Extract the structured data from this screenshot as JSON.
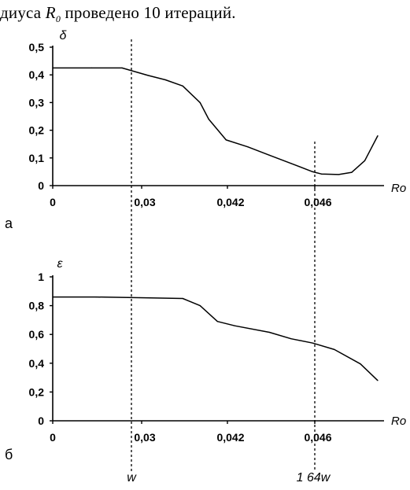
{
  "text_line": {
    "prefix": "диуса ",
    "var_letter": "R",
    "var_subscript": "0",
    "suffix": " проведено 10 итераций."
  },
  "chart_data": [
    {
      "type": "line",
      "panel_label": "а",
      "ylabel": "δ",
      "xlabel": "Ro",
      "ylim": [
        0,
        0.5
      ],
      "yticks": [
        "0,5",
        "0,4",
        "0,3",
        "0,2",
        "0,1",
        "0"
      ],
      "xtick_labels": [
        "0",
        "0,03",
        "0,042",
        "0,046"
      ],
      "grid": false,
      "series": [
        {
          "x": [
            0,
            0.009,
            0.016,
            0.022,
            0.026,
            0.03,
            0.034,
            0.036,
            0.04,
            0.045,
            0.05,
            0.055,
            0.06,
            0.062,
            0.066,
            0.069,
            0.072,
            0.075
          ],
          "values": [
            0.425,
            0.425,
            0.425,
            0.398,
            0.382,
            0.36,
            0.3,
            0.24,
            0.165,
            0.14,
            0.11,
            0.08,
            0.05,
            0.042,
            0.04,
            0.048,
            0.09,
            0.18
          ]
        }
      ]
    },
    {
      "type": "line",
      "panel_label": "б",
      "ylabel": "ε",
      "xlabel": "Ro",
      "ylim": [
        0,
        1
      ],
      "yticks": [
        "1",
        "0,8",
        "0,6",
        "0,4",
        "0,2",
        "0"
      ],
      "xtick_labels": [
        "0",
        "0,03",
        "0,042",
        "0,046"
      ],
      "grid": false,
      "series": [
        {
          "x": [
            0,
            0.01,
            0.02,
            0.03,
            0.034,
            0.038,
            0.042,
            0.05,
            0.055,
            0.06,
            0.065,
            0.071,
            0.075
          ],
          "values": [
            0.86,
            0.86,
            0.855,
            0.85,
            0.8,
            0.69,
            0.66,
            0.615,
            0.57,
            0.54,
            0.495,
            0.395,
            0.28
          ]
        }
      ]
    }
  ],
  "markers": {
    "left_label": "w",
    "right_label": "1 64w"
  }
}
